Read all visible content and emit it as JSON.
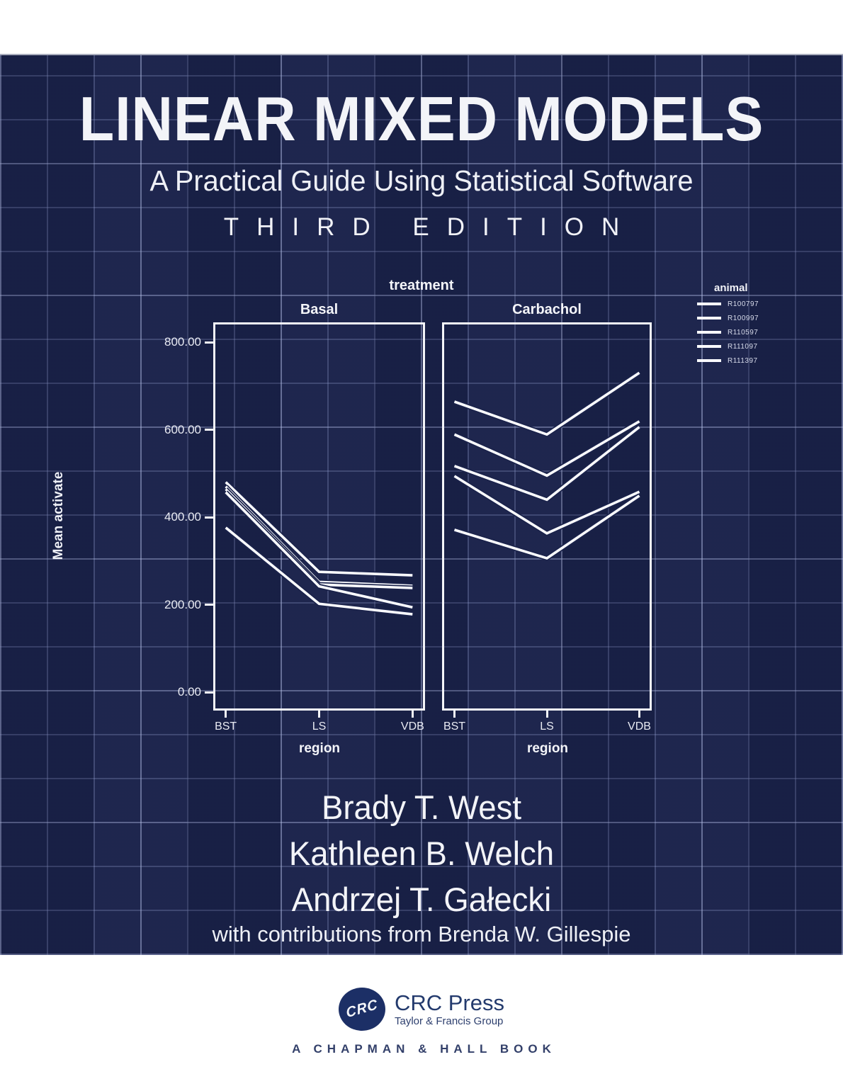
{
  "cover": {
    "title": "LINEAR MIXED MODELS",
    "subtitle": "A Practical Guide Using Statistical Software",
    "edition": "THIRD EDITION",
    "authors": [
      "Brady T. West",
      "Kathleen B. Welch",
      "Andrzej T. Gałecki"
    ],
    "contributors_note": "with contributions from Brenda W. Gillespie",
    "colors": {
      "cover_navy": "#1b234b",
      "grid_line": "#8894c5",
      "text_white": "#f3f4f8",
      "publisher_navy": "#1c2f66"
    }
  },
  "chart_data": {
    "type": "line",
    "facet_title": "treatment",
    "categories": [
      "BST",
      "LS",
      "VDB"
    ],
    "xlabel": "region",
    "ylabel": "Mean activate",
    "yticks": [
      {
        "label": "800.00",
        "value": 800
      },
      {
        "label": "600.00",
        "value": 600
      },
      {
        "label": "400.00",
        "value": 400
      },
      {
        "label": "200.00",
        "value": 200
      },
      {
        "label": "0.00",
        "value": 0
      }
    ],
    "ylim": [
      -40,
      840
    ],
    "grid": true,
    "legend": {
      "title": "animal",
      "position": "top-right",
      "entries": [
        "R100797",
        "R100997",
        "R110597",
        "R111097",
        "R111397"
      ]
    },
    "panels": [
      {
        "label": "Basal",
        "series": [
          {
            "name": "R100797",
            "values": [
              480,
              275,
              267
            ]
          },
          {
            "name": "R100997",
            "values": [
              470,
              252,
              243
            ]
          },
          {
            "name": "R110597",
            "values": [
              464,
              246,
              238
            ]
          },
          {
            "name": "R111097",
            "values": [
              457,
              242,
              194
            ]
          },
          {
            "name": "R111397",
            "values": [
              376,
              202,
              178
            ]
          }
        ]
      },
      {
        "label": "Carbachol",
        "series": [
          {
            "name": "R100797",
            "values": [
              664,
              589,
              730
            ]
          },
          {
            "name": "R100997",
            "values": [
              589,
              495,
              619
            ]
          },
          {
            "name": "R110597",
            "values": [
              517,
              440,
              606
            ]
          },
          {
            "name": "R111097",
            "values": [
              494,
              363,
              458
            ]
          },
          {
            "name": "R111397",
            "values": [
              371,
              306,
              449
            ]
          }
        ]
      }
    ]
  },
  "publisher": {
    "logo_text": "CRC",
    "name": "CRC Press",
    "group": "Taylor & Francis Group",
    "imprint": "A CHAPMAN & HALL BOOK"
  }
}
